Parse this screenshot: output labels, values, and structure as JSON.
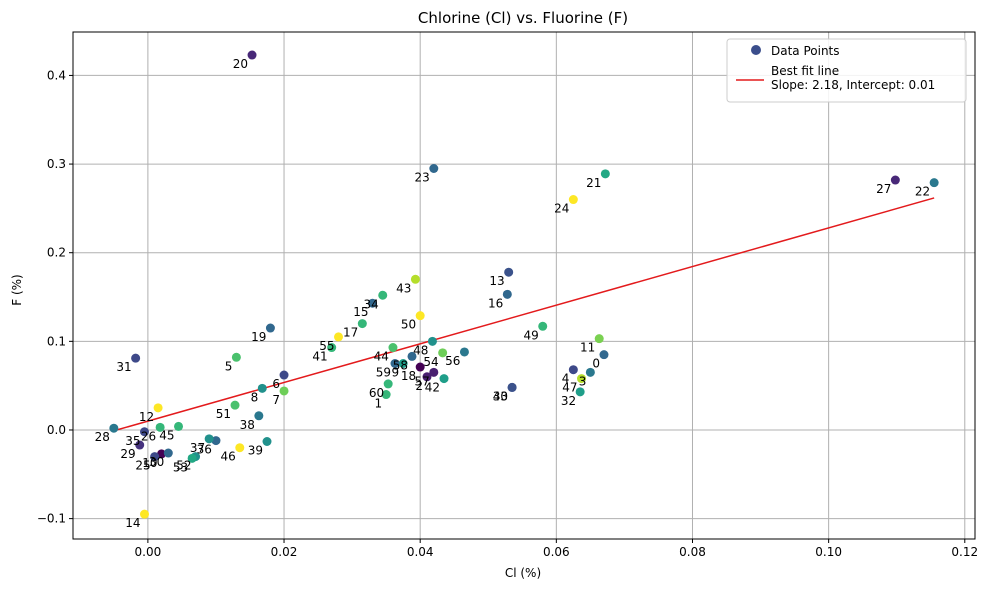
{
  "chart_data": {
    "type": "scatter",
    "title": "Chlorine (Cl) vs. Fluorine (F)",
    "xlabel": "Cl (%)",
    "ylabel": "F (%)",
    "xlim": [
      -0.011,
      0.1215
    ],
    "ylim": [
      -0.123,
      0.449
    ],
    "x_ticks": [
      0.0,
      0.02,
      0.04,
      0.06,
      0.08,
      0.1,
      0.12
    ],
    "x_tick_labels": [
      "0.00",
      "0.02",
      "0.04",
      "0.06",
      "0.08",
      "0.10",
      "0.12"
    ],
    "y_ticks": [
      -0.1,
      0.0,
      0.1,
      0.2,
      0.3,
      0.4
    ],
    "y_tick_labels": [
      "−0.1",
      "0.0",
      "0.1",
      "0.2",
      "0.3",
      "0.4"
    ],
    "grid": true,
    "legend_position": "top-right",
    "legend": {
      "points": "Data Points",
      "line": "Best fit line\nSlope: 2.18, Intercept: 0.01"
    },
    "colors": {
      "fit_line": "#e31a1c",
      "legend_marker": "#3b4e8c"
    },
    "fit_line": {
      "slope": 2.18,
      "intercept": 0.01,
      "x_range": [
        -0.005,
        0.1155
      ]
    },
    "points": [
      {
        "label": "0",
        "x": 0.067,
        "y": 0.085,
        "color": "#31688e"
      },
      {
        "label": "1",
        "x": 0.035,
        "y": 0.04,
        "color": "#35b779"
      },
      {
        "label": "2",
        "x": 0.041,
        "y": 0.06,
        "color": "#481f70"
      },
      {
        "label": "3",
        "x": 0.065,
        "y": 0.065,
        "color": "#2a788e"
      },
      {
        "label": "4",
        "x": 0.0625,
        "y": 0.068,
        "color": "#3e4989"
      },
      {
        "label": "5",
        "x": 0.013,
        "y": 0.082,
        "color": "#4ac16d"
      },
      {
        "label": "6",
        "x": 0.02,
        "y": 0.062,
        "color": "#3e4989"
      },
      {
        "label": "7",
        "x": 0.02,
        "y": 0.044,
        "color": "#6ece58"
      },
      {
        "label": "8",
        "x": 0.0168,
        "y": 0.047,
        "color": "#21918c"
      },
      {
        "label": "9",
        "x": 0.0375,
        "y": 0.075,
        "color": "#1f9e89"
      },
      {
        "label": "10",
        "x": 0.002,
        "y": -0.027,
        "color": "#440154"
      },
      {
        "label": "11",
        "x": 0.0663,
        "y": 0.103,
        "color": "#7ad151"
      },
      {
        "label": "12",
        "x": 0.0015,
        "y": 0.025,
        "color": "#fde725"
      },
      {
        "label": "13",
        "x": 0.053,
        "y": 0.178,
        "color": "#3b528b"
      },
      {
        "label": "14",
        "x": -0.0005,
        "y": -0.095,
        "color": "#fde725"
      },
      {
        "label": "15",
        "x": 0.033,
        "y": 0.143,
        "color": "#31688e"
      },
      {
        "label": "16",
        "x": 0.0528,
        "y": 0.153,
        "color": "#31688e"
      },
      {
        "label": "17",
        "x": 0.0315,
        "y": 0.12,
        "color": "#35b779"
      },
      {
        "label": "18",
        "x": 0.04,
        "y": 0.071,
        "color": "#440154"
      },
      {
        "label": "19",
        "x": 0.018,
        "y": 0.115,
        "color": "#31688e"
      },
      {
        "label": "20",
        "x": 0.0153,
        "y": 0.423,
        "color": "#482878"
      },
      {
        "label": "21",
        "x": 0.0672,
        "y": 0.289,
        "color": "#22a884"
      },
      {
        "label": "22",
        "x": 0.1155,
        "y": 0.279,
        "color": "#2a788e"
      },
      {
        "label": "23",
        "x": 0.042,
        "y": 0.295,
        "color": "#31688e"
      },
      {
        "label": "24",
        "x": 0.0625,
        "y": 0.26,
        "color": "#fde725"
      },
      {
        "label": "25",
        "x": 0.001,
        "y": -0.03,
        "color": "#3e4989"
      },
      {
        "label": "26",
        "x": 0.0018,
        "y": 0.003,
        "color": "#35b779"
      },
      {
        "label": "27",
        "x": 0.1098,
        "y": 0.282,
        "color": "#482878"
      },
      {
        "label": "28",
        "x": -0.005,
        "y": 0.002,
        "color": "#2a788e"
      },
      {
        "label": "29",
        "x": -0.0012,
        "y": -0.017,
        "color": "#46327e"
      },
      {
        "label": "30",
        "x": 0.003,
        "y": -0.026,
        "color": "#31688e"
      },
      {
        "label": "31",
        "x": -0.0018,
        "y": 0.081,
        "color": "#3e4989"
      },
      {
        "label": "32",
        "x": 0.0635,
        "y": 0.043,
        "color": "#1f9e89"
      },
      {
        "label": "33",
        "x": 0.0535,
        "y": 0.048,
        "color": "#3e4989"
      },
      {
        "label": "34",
        "x": 0.0345,
        "y": 0.152,
        "color": "#35b779"
      },
      {
        "label": "35",
        "x": -0.0005,
        "y": -0.002,
        "color": "#3e4989"
      },
      {
        "label": "36",
        "x": 0.01,
        "y": -0.012,
        "color": "#31688e"
      },
      {
        "label": "37",
        "x": 0.009,
        "y": -0.01,
        "color": "#21918c"
      },
      {
        "label": "38",
        "x": 0.0163,
        "y": 0.016,
        "color": "#2a788e"
      },
      {
        "label": "39",
        "x": 0.0175,
        "y": -0.013,
        "color": "#21918c"
      },
      {
        "label": "40",
        "x": 0.0535,
        "y": 0.048,
        "color": "#3b528b"
      },
      {
        "label": "41",
        "x": 0.027,
        "y": 0.093,
        "color": "#35b779"
      },
      {
        "label": "42",
        "x": 0.0435,
        "y": 0.058,
        "color": "#1f9e89"
      },
      {
        "label": "43",
        "x": 0.0393,
        "y": 0.17,
        "color": "#b5de2b"
      },
      {
        "label": "44",
        "x": 0.036,
        "y": 0.093,
        "color": "#4ac16d"
      },
      {
        "label": "45",
        "x": 0.0045,
        "y": 0.004,
        "color": "#35b779"
      },
      {
        "label": "46",
        "x": 0.0135,
        "y": -0.02,
        "color": "#fde725"
      },
      {
        "label": "47",
        "x": 0.0637,
        "y": 0.058,
        "color": "#b5de2b"
      },
      {
        "label": "48",
        "x": 0.0418,
        "y": 0.1,
        "color": "#21918c"
      },
      {
        "label": "49",
        "x": 0.058,
        "y": 0.117,
        "color": "#35b779"
      },
      {
        "label": "50",
        "x": 0.04,
        "y": 0.129,
        "color": "#fde725"
      },
      {
        "label": "51",
        "x": 0.0128,
        "y": 0.028,
        "color": "#4ac16d"
      },
      {
        "label": "52",
        "x": 0.007,
        "y": -0.03,
        "color": "#21918c"
      },
      {
        "label": "53",
        "x": 0.0065,
        "y": -0.032,
        "color": "#22a884"
      },
      {
        "label": "54",
        "x": 0.0433,
        "y": 0.087,
        "color": "#6ece58"
      },
      {
        "label": "55",
        "x": 0.028,
        "y": 0.105,
        "color": "#fde725"
      },
      {
        "label": "56",
        "x": 0.0465,
        "y": 0.088,
        "color": "#2a788e"
      },
      {
        "label": "57",
        "x": 0.042,
        "y": 0.065,
        "color": "#481f70"
      },
      {
        "label": "58",
        "x": 0.0388,
        "y": 0.083,
        "color": "#31688e"
      },
      {
        "label": "59",
        "x": 0.0363,
        "y": 0.075,
        "color": "#31688e"
      },
      {
        "label": "60",
        "x": 0.0353,
        "y": 0.052,
        "color": "#35b779"
      }
    ]
  }
}
